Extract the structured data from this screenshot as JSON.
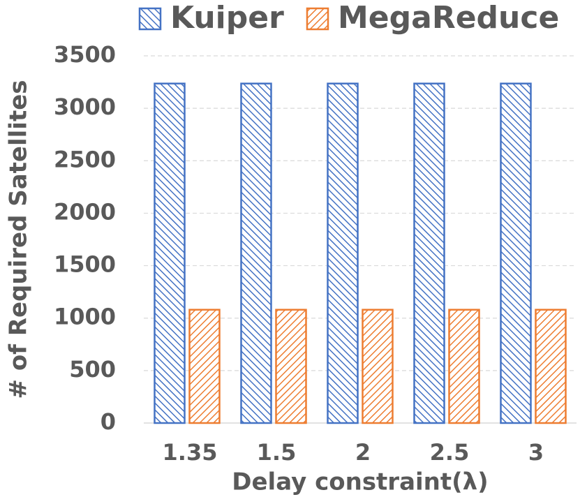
{
  "chart_data": {
    "type": "bar",
    "categories": [
      "1.35",
      "1.5",
      "2",
      "2.5",
      "3"
    ],
    "series": [
      {
        "name": "Kuiper",
        "color": "#4472c4",
        "values": [
          3236,
          3236,
          3236,
          3236,
          3236
        ]
      },
      {
        "name": "MegaReduce",
        "color": "#ed7d31",
        "values": [
          1080,
          1080,
          1080,
          1080,
          1080
        ]
      }
    ],
    "x_label": "Delay constraint(λ)",
    "y_label": "# of Required Satellites",
    "ylim": [
      0,
      3500
    ],
    "yticks": [
      0,
      500,
      1000,
      1500,
      2000,
      2500,
      3000,
      3500
    ],
    "grid": true,
    "legend": "top"
  }
}
